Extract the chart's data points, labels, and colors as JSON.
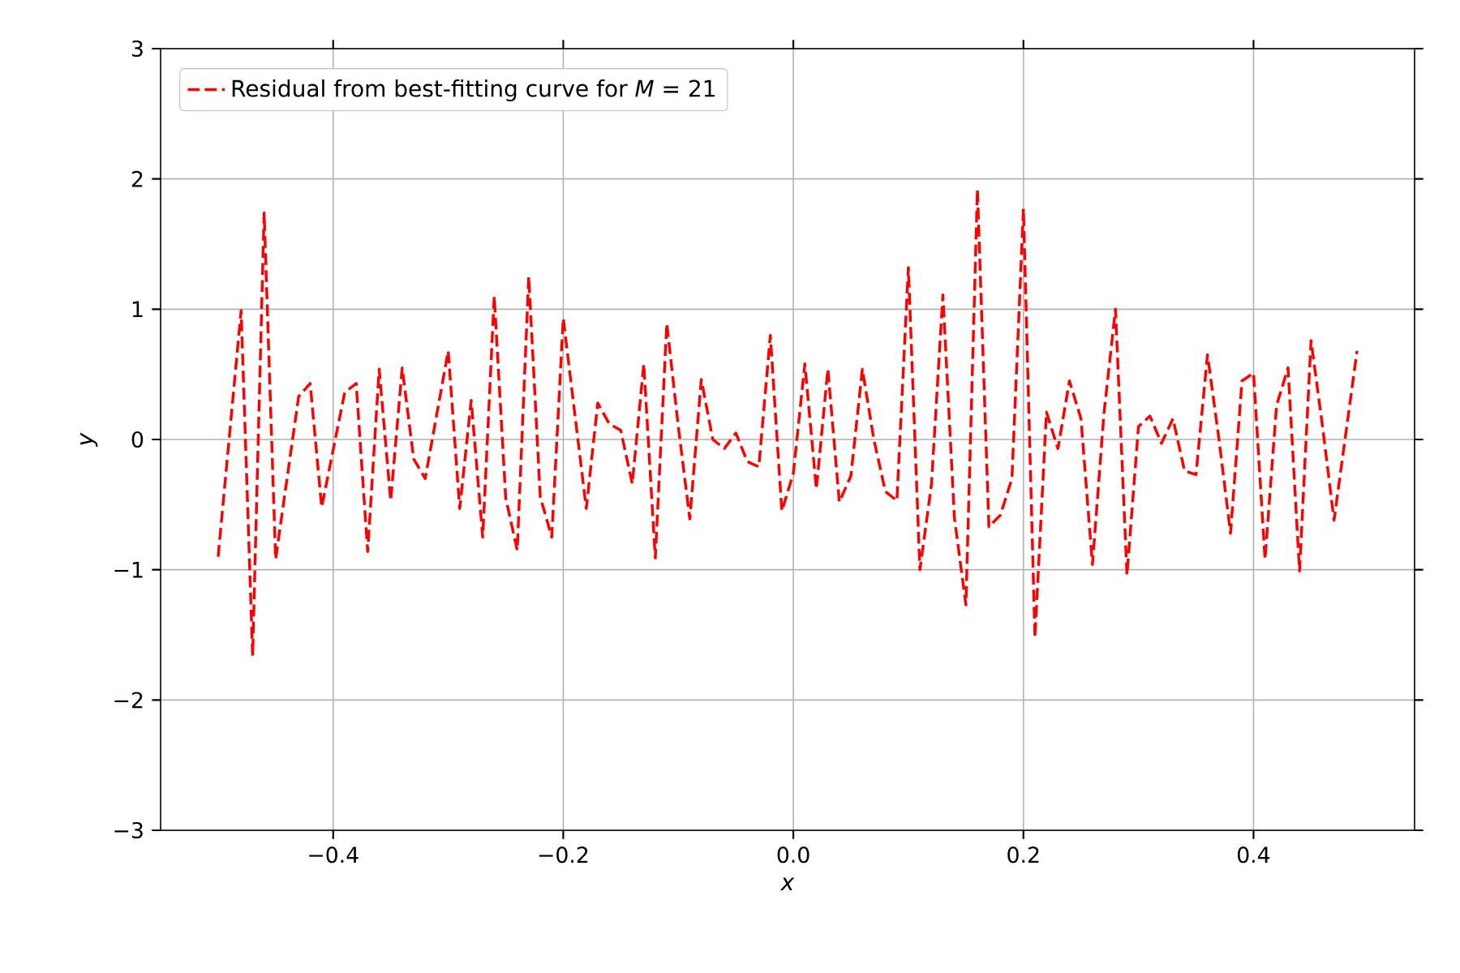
{
  "chart_data": {
    "type": "line",
    "xlabel": "*x*",
    "ylabel": "*y*",
    "xlim": [
      -0.55,
      0.54
    ],
    "ylim": [
      -3,
      3
    ],
    "xticks": [
      {
        "value": -0.4,
        "label": "−0.4"
      },
      {
        "value": -0.2,
        "label": "−0.2"
      },
      {
        "value": 0.0,
        "label": "0.0"
      },
      {
        "value": 0.2,
        "label": "0.2"
      },
      {
        "value": 0.4,
        "label": "0.4"
      }
    ],
    "yticks": [
      {
        "value": -3,
        "label": "−3"
      },
      {
        "value": -2,
        "label": "−2"
      },
      {
        "value": -1,
        "label": "−1"
      },
      0,
      1,
      2,
      3
    ],
    "grid": true,
    "legend": "top left",
    "line_style": "dashed",
    "series": [
      {
        "name": "Residual from best-fitting curve for *M* = 21",
        "color": "#ff0000",
        "x": [
          -0.5,
          -0.48,
          -0.47,
          -0.46,
          -0.45,
          -0.43,
          -0.42,
          -0.41,
          -0.39,
          -0.38,
          -0.37,
          -0.36,
          -0.35,
          -0.34,
          -0.33,
          -0.32,
          -0.3,
          -0.29,
          -0.28,
          -0.27,
          -0.26,
          -0.25,
          -0.24,
          -0.23,
          -0.22,
          -0.21,
          -0.2,
          -0.18,
          -0.17,
          -0.16,
          -0.15,
          -0.14,
          -0.13,
          -0.12,
          -0.11,
          -0.1,
          -0.09,
          -0.08,
          -0.07,
          -0.06,
          -0.05,
          -0.04,
          -0.03,
          -0.02,
          -0.01,
          0.0,
          0.01,
          0.02,
          0.03,
          0.04,
          0.05,
          0.06,
          0.07,
          0.08,
          0.09,
          0.1,
          0.11,
          0.12,
          0.13,
          0.14,
          0.15,
          0.16,
          0.17,
          0.18,
          0.19,
          0.2,
          0.21,
          0.22,
          0.23,
          0.24,
          0.25,
          0.26,
          0.27,
          0.28,
          0.29,
          0.3,
          0.31,
          0.32,
          0.33,
          0.34,
          0.35,
          0.36,
          0.37,
          0.38,
          0.39,
          0.4,
          0.41,
          0.42,
          0.43,
          0.44,
          0.45,
          0.46,
          0.47,
          0.49
        ],
        "values": [
          -0.9,
          0.99,
          -1.66,
          1.74,
          -0.92,
          0.33,
          0.43,
          -0.52,
          0.36,
          0.43,
          -0.86,
          0.54,
          -0.47,
          0.55,
          -0.15,
          -0.3,
          0.68,
          -0.53,
          0.3,
          -0.75,
          1.1,
          -0.45,
          -0.85,
          1.25,
          -0.44,
          -0.75,
          0.93,
          -0.53,
          0.28,
          0.12,
          0.07,
          -0.34,
          0.58,
          -0.91,
          0.89,
          0.1,
          -0.61,
          0.46,
          0.0,
          -0.07,
          0.05,
          -0.17,
          -0.21,
          0.8,
          -0.55,
          -0.26,
          0.58,
          -0.38,
          0.54,
          -0.48,
          -0.28,
          0.54,
          0.0,
          -0.4,
          -0.47,
          1.32,
          -1.0,
          -0.35,
          1.11,
          -0.6,
          -1.27,
          1.92,
          -0.67,
          -0.58,
          -0.3,
          1.77,
          -1.52,
          0.21,
          -0.07,
          0.45,
          0.16,
          -0.96,
          0.2,
          1.0,
          -1.04,
          0.1,
          0.18,
          -0.03,
          0.16,
          -0.24,
          -0.27,
          0.65,
          0.0,
          -0.72,
          0.45,
          0.51,
          -0.92,
          0.26,
          0.55,
          -1.01,
          0.76,
          0.1,
          -0.62,
          0.68
        ]
      }
    ]
  }
}
